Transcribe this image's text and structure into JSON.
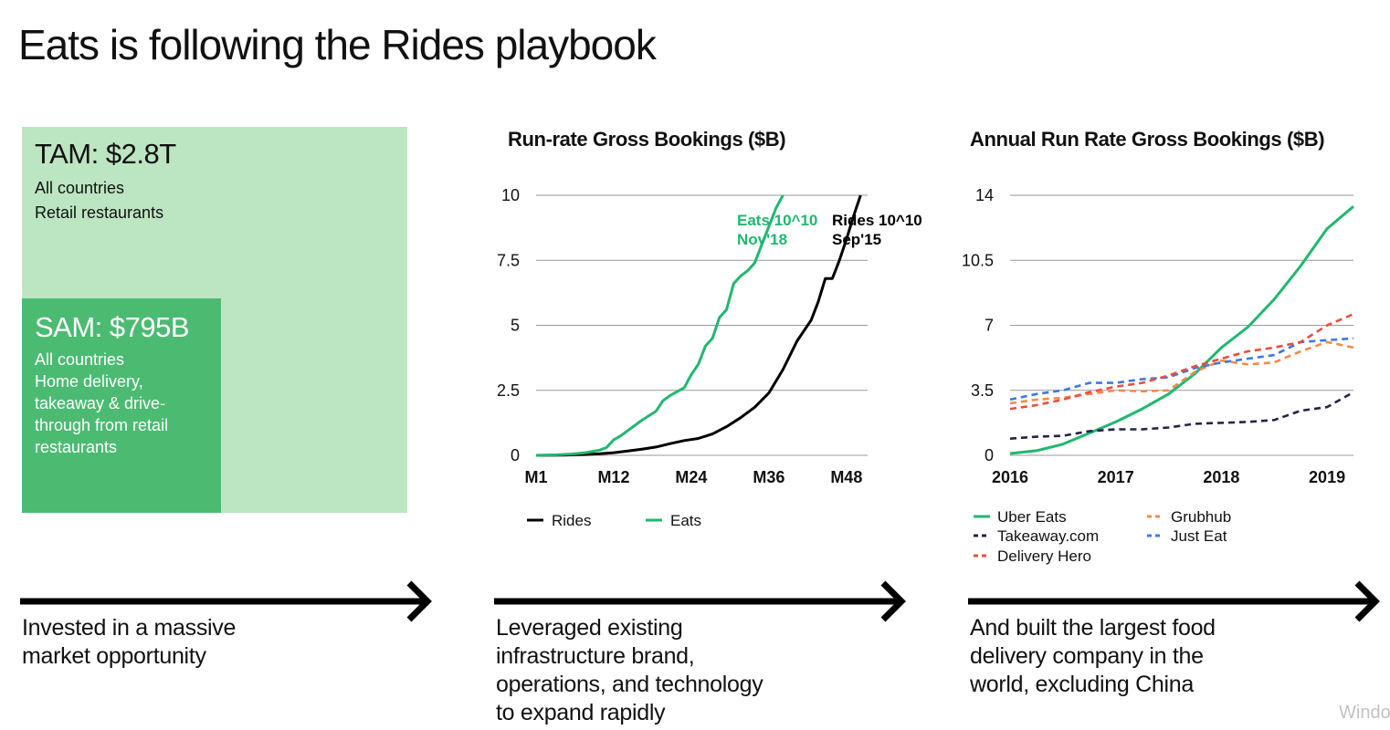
{
  "slide": {
    "title": "Eats is following the Rides playbook"
  },
  "colors": {
    "tam": "#bce6c1",
    "sam": "#4bbb72",
    "eats": "#1fb870",
    "rides": "#000000",
    "grid": "#999999",
    "takeaway": "#25234a",
    "grubhub": "#f58a4a",
    "delivery_hero": "#ef4c3c",
    "just_eat": "#3c78e6"
  },
  "market": {
    "tam": {
      "label": "TAM: $2.8T",
      "lines": [
        "All countries",
        "Retail restaurants"
      ]
    },
    "sam": {
      "label": "SAM: $795B",
      "lines": [
        "All countries",
        "Home delivery,",
        "takeaway & drive-",
        "through from retail",
        "restaurants"
      ]
    }
  },
  "captions": {
    "left": [
      "Invested in a massive",
      "market opportunity"
    ],
    "middle": [
      "Leveraged existing",
      "infrastructure brand,",
      "operations, and technology",
      "to expand rapidly"
    ],
    "right": [
      "And built the largest food",
      "delivery company in the",
      "world, excluding China"
    ]
  },
  "watermark": "Windo",
  "chart_data": [
    {
      "type": "line",
      "title": "Run-rate Gross Bookings ($B)",
      "xlabel": "",
      "ylabel": "",
      "x_ticks": [
        "M1",
        "M12",
        "M24",
        "M36",
        "M48"
      ],
      "y_ticks": [
        "0",
        "2.5",
        "5",
        "7.5",
        "10"
      ],
      "xlim": [
        1,
        48
      ],
      "ylim": [
        0,
        10
      ],
      "grid": true,
      "annotations": [
        {
          "lines": [
            "Eats 10^10",
            "Nov'18"
          ],
          "series": "Eats"
        },
        {
          "lines": [
            "Rides 10^10",
            "Sep'15"
          ],
          "series": "Rides"
        }
      ],
      "legend": [
        "Rides",
        "Eats"
      ],
      "series": [
        {
          "name": "Rides",
          "color_key": "rides",
          "points": [
            [
              1,
              0
            ],
            [
              5,
              0.01
            ],
            [
              8,
              0.03
            ],
            [
              10,
              0.06
            ],
            [
              12,
              0.1
            ],
            [
              14,
              0.17
            ],
            [
              16,
              0.24
            ],
            [
              18,
              0.32
            ],
            [
              20,
              0.45
            ],
            [
              22,
              0.57
            ],
            [
              24,
              0.65
            ],
            [
              26,
              0.82
            ],
            [
              28,
              1.1
            ],
            [
              30,
              1.45
            ],
            [
              32,
              1.85
            ],
            [
              34,
              2.4
            ],
            [
              36,
              3.3
            ],
            [
              38,
              4.4
            ],
            [
              40,
              5.2
            ],
            [
              41,
              5.9
            ],
            [
              42,
              6.8
            ],
            [
              43,
              6.8
            ],
            [
              44,
              7.5
            ],
            [
              45,
              8.3
            ],
            [
              46,
              9.2
            ],
            [
              47,
              10
            ]
          ]
        },
        {
          "name": "Eats",
          "color_key": "eats",
          "points": [
            [
              1,
              0
            ],
            [
              4,
              0.02
            ],
            [
              6,
              0.05
            ],
            [
              8,
              0.1
            ],
            [
              10,
              0.2
            ],
            [
              11,
              0.3
            ],
            [
              12,
              0.6
            ],
            [
              13,
              0.75
            ],
            [
              14,
              0.95
            ],
            [
              16,
              1.35
            ],
            [
              18,
              1.7
            ],
            [
              19,
              2.1
            ],
            [
              20,
              2.3
            ],
            [
              22,
              2.6
            ],
            [
              23,
              3.1
            ],
            [
              24,
              3.5
            ],
            [
              25,
              4.2
            ],
            [
              26,
              4.5
            ],
            [
              27,
              5.3
            ],
            [
              28,
              5.6
            ],
            [
              29,
              6.6
            ],
            [
              30,
              6.9
            ],
            [
              31,
              7.1
            ],
            [
              32,
              7.4
            ],
            [
              33,
              8.1
            ],
            [
              34,
              8.8
            ],
            [
              35,
              9.5
            ],
            [
              36,
              10
            ]
          ]
        }
      ]
    },
    {
      "type": "line",
      "title": "Annual Run Rate Gross Bookings ($B)",
      "xlabel": "",
      "ylabel": "",
      "x_ticks": [
        "2016",
        "2017",
        "2018",
        "2019"
      ],
      "y_ticks": [
        "0",
        "3.5",
        "7",
        "10.5",
        "14"
      ],
      "xlim": [
        2016,
        2019.25
      ],
      "ylim": [
        0,
        14
      ],
      "grid": true,
      "legend": [
        "Uber Eats",
        "Grubhub",
        "Takeaway.com",
        "Just Eat",
        "Delivery Hero"
      ],
      "series": [
        {
          "name": "Uber Eats",
          "color_key": "eats",
          "dashed": false,
          "points": [
            [
              2016,
              0.1
            ],
            [
              2016.25,
              0.25
            ],
            [
              2016.5,
              0.6
            ],
            [
              2016.75,
              1.2
            ],
            [
              2017,
              1.8
            ],
            [
              2017.25,
              2.5
            ],
            [
              2017.5,
              3.3
            ],
            [
              2017.75,
              4.4
            ],
            [
              2018,
              5.8
            ],
            [
              2018.25,
              6.9
            ],
            [
              2018.5,
              8.4
            ],
            [
              2018.75,
              10.2
            ],
            [
              2019,
              12.2
            ],
            [
              2019.25,
              13.4
            ]
          ]
        },
        {
          "name": "Takeaway.com",
          "color_key": "takeaway",
          "dashed": true,
          "points": [
            [
              2016,
              0.9
            ],
            [
              2016.25,
              1.0
            ],
            [
              2016.5,
              1.05
            ],
            [
              2016.75,
              1.3
            ],
            [
              2017,
              1.4
            ],
            [
              2017.25,
              1.4
            ],
            [
              2017.5,
              1.5
            ],
            [
              2017.75,
              1.7
            ],
            [
              2018,
              1.75
            ],
            [
              2018.25,
              1.8
            ],
            [
              2018.5,
              1.9
            ],
            [
              2018.75,
              2.4
            ],
            [
              2019,
              2.6
            ],
            [
              2019.25,
              3.4
            ]
          ]
        },
        {
          "name": "Grubhub",
          "color_key": "grubhub",
          "dashed": true,
          "points": [
            [
              2016,
              2.8
            ],
            [
              2016.25,
              3.0
            ],
            [
              2016.5,
              3.1
            ],
            [
              2016.75,
              3.3
            ],
            [
              2017,
              3.5
            ],
            [
              2017.25,
              3.45
            ],
            [
              2017.5,
              3.5
            ],
            [
              2017.75,
              4.5
            ],
            [
              2018,
              5.1
            ],
            [
              2018.25,
              4.9
            ],
            [
              2018.5,
              5.0
            ],
            [
              2018.75,
              5.6
            ],
            [
              2019,
              6.1
            ],
            [
              2019.25,
              5.8
            ]
          ]
        },
        {
          "name": "Just Eat",
          "color_key": "just_eat",
          "dashed": true,
          "points": [
            [
              2016,
              3.0
            ],
            [
              2016.25,
              3.3
            ],
            [
              2016.5,
              3.5
            ],
            [
              2016.75,
              3.9
            ],
            [
              2017,
              3.9
            ],
            [
              2017.25,
              4.1
            ],
            [
              2017.5,
              4.2
            ],
            [
              2017.75,
              4.7
            ],
            [
              2018,
              5.0
            ],
            [
              2018.25,
              5.2
            ],
            [
              2018.5,
              5.4
            ],
            [
              2018.75,
              6.1
            ],
            [
              2019,
              6.2
            ],
            [
              2019.25,
              6.3
            ]
          ]
        },
        {
          "name": "Delivery Hero",
          "color_key": "delivery_hero",
          "dashed": true,
          "points": [
            [
              2016,
              2.5
            ],
            [
              2016.25,
              2.7
            ],
            [
              2016.5,
              3.0
            ],
            [
              2016.75,
              3.4
            ],
            [
              2017,
              3.7
            ],
            [
              2017.25,
              3.9
            ],
            [
              2017.5,
              4.3
            ],
            [
              2017.75,
              4.8
            ],
            [
              2018,
              5.2
            ],
            [
              2018.25,
              5.6
            ],
            [
              2018.5,
              5.8
            ],
            [
              2018.75,
              6.1
            ],
            [
              2019,
              7.0
            ],
            [
              2019.25,
              7.6
            ]
          ]
        }
      ]
    }
  ]
}
